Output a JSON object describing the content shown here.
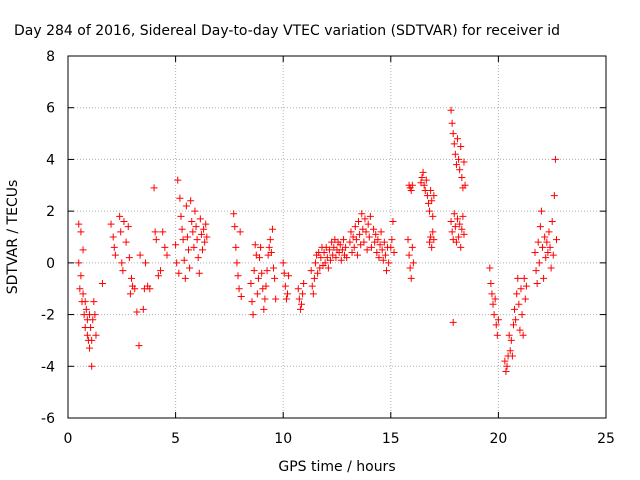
{
  "chart_data": {
    "type": "scatter",
    "title": "Day 284 of 2016, Sidereal Day-to-day VTEC variation (SDTVAR) for receiver id",
    "xlabel": "GPS time / hours",
    "ylabel": "SDTVAR / TECUs",
    "xlim": [
      0,
      25
    ],
    "ylim": [
      -6,
      8
    ],
    "xticks": [
      "0",
      "5",
      "10",
      "15",
      "20",
      "25"
    ],
    "yticks": [
      "-6",
      "-4",
      "-2",
      "0",
      "2",
      "4",
      "6",
      "8"
    ],
    "xtick_values": [
      0,
      5,
      10,
      15,
      20,
      25
    ],
    "ytick_values": [
      -6,
      -4,
      -2,
      0,
      2,
      4,
      6,
      8
    ],
    "grid": true,
    "marker": "plus",
    "colors": {
      "points": "#ff0000",
      "grid": "#b0b0b0",
      "axes": "#000000"
    },
    "series": [
      {
        "points": [
          [
            0.5,
            1.5
          ],
          [
            0.5,
            0.0
          ],
          [
            0.55,
            -1.0
          ],
          [
            0.6,
            1.2
          ],
          [
            0.6,
            -0.5
          ],
          [
            0.65,
            -1.5
          ],
          [
            0.7,
            -1.2
          ],
          [
            0.7,
            0.5
          ],
          [
            0.75,
            -2.0
          ],
          [
            0.8,
            -1.5
          ],
          [
            0.8,
            -2.5
          ],
          [
            0.85,
            -1.8
          ],
          [
            0.9,
            -2.8
          ],
          [
            0.9,
            -2.2
          ],
          [
            0.95,
            -3.0
          ],
          [
            1.0,
            -3.3
          ],
          [
            1.0,
            -2.0
          ],
          [
            1.05,
            -2.5
          ],
          [
            1.1,
            -4.0
          ],
          [
            1.1,
            -3.0
          ],
          [
            1.15,
            -2.2
          ],
          [
            1.2,
            -1.5
          ],
          [
            1.25,
            -2.0
          ],
          [
            1.3,
            -2.8
          ],
          [
            1.6,
            -0.8
          ],
          [
            2.0,
            1.5
          ],
          [
            2.1,
            1.0
          ],
          [
            2.15,
            0.6
          ],
          [
            2.2,
            0.3
          ],
          [
            2.4,
            1.8
          ],
          [
            2.45,
            1.2
          ],
          [
            2.5,
            0.0
          ],
          [
            2.55,
            -0.3
          ],
          [
            2.6,
            1.6
          ],
          [
            2.7,
            0.8
          ],
          [
            2.8,
            1.4
          ],
          [
            2.85,
            0.2
          ],
          [
            2.9,
            -1.2
          ],
          [
            2.95,
            -0.6
          ],
          [
            3.0,
            -0.9
          ],
          [
            3.1,
            -1.0
          ],
          [
            3.2,
            -1.9
          ],
          [
            3.3,
            -3.2
          ],
          [
            3.35,
            0.3
          ],
          [
            3.5,
            -1.8
          ],
          [
            3.55,
            -1.0
          ],
          [
            3.6,
            0.0
          ],
          [
            3.7,
            -0.9
          ],
          [
            3.8,
            -1.0
          ],
          [
            4.0,
            2.9
          ],
          [
            4.05,
            1.2
          ],
          [
            4.1,
            0.9
          ],
          [
            4.2,
            -0.5
          ],
          [
            4.3,
            -0.3
          ],
          [
            4.4,
            1.2
          ],
          [
            4.5,
            0.6
          ],
          [
            4.6,
            0.3
          ],
          [
            5.0,
            0.7
          ],
          [
            5.05,
            0.0
          ],
          [
            5.1,
            3.2
          ],
          [
            5.15,
            -0.4
          ],
          [
            5.2,
            2.5
          ],
          [
            5.25,
            1.8
          ],
          [
            5.3,
            1.3
          ],
          [
            5.35,
            0.9
          ],
          [
            5.4,
            0.1
          ],
          [
            5.45,
            -0.6
          ],
          [
            5.5,
            2.2
          ],
          [
            5.55,
            1.0
          ],
          [
            5.6,
            0.5
          ],
          [
            5.65,
            -0.2
          ],
          [
            5.7,
            2.4
          ],
          [
            5.75,
            1.6
          ],
          [
            5.8,
            1.2
          ],
          [
            5.85,
            0.6
          ],
          [
            5.9,
            2.0
          ],
          [
            5.95,
            1.4
          ],
          [
            6.0,
            0.9
          ],
          [
            6.05,
            0.2
          ],
          [
            6.1,
            -0.4
          ],
          [
            6.15,
            1.7
          ],
          [
            6.2,
            1.1
          ],
          [
            6.25,
            0.5
          ],
          [
            6.3,
            1.3
          ],
          [
            6.35,
            0.8
          ],
          [
            6.4,
            1.5
          ],
          [
            6.45,
            1.0
          ],
          [
            7.7,
            1.9
          ],
          [
            7.75,
            1.4
          ],
          [
            7.8,
            0.6
          ],
          [
            7.85,
            0.0
          ],
          [
            7.9,
            -0.5
          ],
          [
            7.95,
            -1.0
          ],
          [
            8.0,
            1.2
          ],
          [
            8.05,
            -1.3
          ],
          [
            8.5,
            -0.8
          ],
          [
            8.55,
            -1.5
          ],
          [
            8.6,
            -2.0
          ],
          [
            8.65,
            -0.3
          ],
          [
            8.7,
            0.7
          ],
          [
            8.75,
            0.3
          ],
          [
            8.8,
            -1.2
          ],
          [
            8.85,
            -0.6
          ],
          [
            8.9,
            0.2
          ],
          [
            8.95,
            0.6
          ],
          [
            9.0,
            -0.4
          ],
          [
            9.05,
            -1.0
          ],
          [
            9.1,
            -1.8
          ],
          [
            9.15,
            -1.4
          ],
          [
            9.2,
            -0.9
          ],
          [
            9.25,
            -0.3
          ],
          [
            9.3,
            0.3
          ],
          [
            9.35,
            0.6
          ],
          [
            9.4,
            0.9
          ],
          [
            9.45,
            0.4
          ],
          [
            9.5,
            1.3
          ],
          [
            9.55,
            -0.2
          ],
          [
            9.6,
            -0.6
          ],
          [
            9.65,
            -1.4
          ],
          [
            10.0,
            0.0
          ],
          [
            10.05,
            -0.4
          ],
          [
            10.1,
            -0.9
          ],
          [
            10.15,
            -1.4
          ],
          [
            10.2,
            -1.2
          ],
          [
            10.25,
            -0.5
          ],
          [
            10.7,
            -1.0
          ],
          [
            10.75,
            -1.4
          ],
          [
            10.8,
            -1.8
          ],
          [
            10.85,
            -1.6
          ],
          [
            10.9,
            -1.2
          ],
          [
            10.95,
            -0.8
          ],
          [
            11.3,
            -0.3
          ],
          [
            11.35,
            -0.9
          ],
          [
            11.4,
            -1.2
          ],
          [
            11.45,
            -0.6
          ],
          [
            11.5,
            0.0
          ],
          [
            11.55,
            0.3
          ],
          [
            11.6,
            -0.4
          ],
          [
            11.65,
            0.4
          ],
          [
            11.7,
            -0.2
          ],
          [
            11.75,
            0.2
          ],
          [
            11.8,
            0.6
          ],
          [
            11.85,
            -0.1
          ],
          [
            11.9,
            0.4
          ],
          [
            11.95,
            0.0
          ],
          [
            12.0,
            0.6
          ],
          [
            12.05,
            0.2
          ],
          [
            12.1,
            -0.2
          ],
          [
            12.15,
            0.5
          ],
          [
            12.2,
            0.1
          ],
          [
            12.25,
            0.8
          ],
          [
            12.3,
            0.3
          ],
          [
            12.35,
            0.6
          ],
          [
            12.4,
            0.9
          ],
          [
            12.45,
            0.2
          ],
          [
            12.5,
            0.5
          ],
          [
            12.55,
            0.8
          ],
          [
            12.6,
            0.4
          ],
          [
            12.65,
            0.7
          ],
          [
            12.7,
            0.1
          ],
          [
            12.75,
            0.5
          ],
          [
            12.8,
            0.9
          ],
          [
            12.85,
            0.3
          ],
          [
            12.9,
            0.6
          ],
          [
            12.95,
            0.2
          ],
          [
            13.1,
            0.8
          ],
          [
            13.15,
            1.2
          ],
          [
            13.2,
            0.4
          ],
          [
            13.25,
            1.0
          ],
          [
            13.3,
            0.6
          ],
          [
            13.35,
            1.4
          ],
          [
            13.4,
            0.9
          ],
          [
            13.45,
            0.3
          ],
          [
            13.5,
            1.6
          ],
          [
            13.55,
            1.1
          ],
          [
            13.6,
            0.7
          ],
          [
            13.65,
            1.9
          ],
          [
            13.7,
            1.3
          ],
          [
            13.75,
            0.8
          ],
          [
            13.8,
            1.7
          ],
          [
            13.85,
            1.2
          ],
          [
            13.9,
            0.5
          ],
          [
            13.95,
            1.5
          ],
          [
            14.0,
            1.0
          ],
          [
            14.05,
            1.8
          ],
          [
            14.1,
            0.6
          ],
          [
            14.2,
            1.3
          ],
          [
            14.25,
            0.8
          ],
          [
            14.3,
            1.1
          ],
          [
            14.35,
            0.4
          ],
          [
            14.4,
            0.9
          ],
          [
            14.45,
            0.2
          ],
          [
            14.5,
            0.7
          ],
          [
            14.55,
            1.2
          ],
          [
            14.6,
            0.5
          ],
          [
            14.65,
            0.1
          ],
          [
            14.7,
            0.8
          ],
          [
            14.75,
            0.3
          ],
          [
            14.8,
            -0.3
          ],
          [
            14.85,
            0.6
          ],
          [
            14.9,
            0.0
          ],
          [
            15.0,
            0.6
          ],
          [
            15.05,
            0.9
          ],
          [
            15.1,
            1.6
          ],
          [
            15.15,
            0.4
          ],
          [
            15.8,
            0.9
          ],
          [
            15.85,
            0.3
          ],
          [
            15.9,
            -0.2
          ],
          [
            15.95,
            -0.6
          ],
          [
            16.0,
            0.6
          ],
          [
            16.05,
            0.0
          ],
          [
            15.85,
            3.0
          ],
          [
            15.9,
            2.9
          ],
          [
            15.95,
            2.8
          ],
          [
            16.0,
            3.0
          ],
          [
            16.4,
            3.1
          ],
          [
            16.45,
            3.3
          ],
          [
            16.5,
            3.5
          ],
          [
            16.55,
            3.0
          ],
          [
            16.6,
            2.8
          ],
          [
            16.65,
            3.2
          ],
          [
            16.7,
            2.6
          ],
          [
            16.75,
            2.3
          ],
          [
            16.8,
            2.0
          ],
          [
            16.85,
            2.8
          ],
          [
            16.9,
            2.4
          ],
          [
            16.95,
            1.8
          ],
          [
            17.0,
            2.6
          ],
          [
            16.8,
            0.8
          ],
          [
            16.85,
            1.0
          ],
          [
            16.9,
            0.6
          ],
          [
            16.95,
            1.2
          ],
          [
            17.0,
            0.9
          ],
          [
            17.8,
            5.9
          ],
          [
            17.85,
            5.4
          ],
          [
            17.9,
            5.0
          ],
          [
            17.95,
            4.6
          ],
          [
            18.0,
            4.2
          ],
          [
            18.05,
            3.8
          ],
          [
            18.1,
            4.8
          ],
          [
            18.15,
            4.0
          ],
          [
            18.2,
            3.6
          ],
          [
            18.25,
            4.5
          ],
          [
            18.3,
            3.3
          ],
          [
            18.35,
            2.9
          ],
          [
            18.4,
            3.9
          ],
          [
            18.45,
            3.0
          ],
          [
            17.8,
            1.6
          ],
          [
            17.85,
            1.2
          ],
          [
            17.9,
            0.9
          ],
          [
            17.95,
            1.9
          ],
          [
            18.0,
            1.4
          ],
          [
            18.05,
            0.8
          ],
          [
            18.1,
            1.7
          ],
          [
            18.15,
            1.0
          ],
          [
            18.2,
            1.5
          ],
          [
            18.25,
            0.6
          ],
          [
            18.3,
            1.3
          ],
          [
            18.35,
            1.8
          ],
          [
            18.4,
            1.1
          ],
          [
            17.9,
            -2.3
          ],
          [
            19.6,
            -0.2
          ],
          [
            19.65,
            -0.8
          ],
          [
            19.7,
            -1.2
          ],
          [
            19.75,
            -1.6
          ],
          [
            19.8,
            -2.0
          ],
          [
            19.85,
            -1.4
          ],
          [
            19.9,
            -2.4
          ],
          [
            19.95,
            -2.8
          ],
          [
            20.0,
            -2.2
          ],
          [
            20.3,
            -3.8
          ],
          [
            20.35,
            -4.2
          ],
          [
            20.4,
            -4.0
          ],
          [
            20.45,
            -3.6
          ],
          [
            20.5,
            -2.8
          ],
          [
            20.55,
            -3.4
          ],
          [
            20.6,
            -3.0
          ],
          [
            20.65,
            -3.6
          ],
          [
            20.7,
            -2.4
          ],
          [
            20.75,
            -1.8
          ],
          [
            20.8,
            -2.2
          ],
          [
            20.85,
            -1.2
          ],
          [
            20.9,
            -0.6
          ],
          [
            20.95,
            -1.6
          ],
          [
            21.0,
            -2.6
          ],
          [
            21.05,
            -1.0
          ],
          [
            21.1,
            -2.0
          ],
          [
            21.15,
            -2.8
          ],
          [
            21.2,
            -0.6
          ],
          [
            21.25,
            -1.4
          ],
          [
            21.3,
            -0.9
          ],
          [
            21.7,
            0.4
          ],
          [
            21.75,
            -0.3
          ],
          [
            21.8,
            -0.8
          ],
          [
            21.85,
            0.8
          ],
          [
            21.9,
            0.0
          ],
          [
            21.95,
            1.4
          ],
          [
            22.0,
            2.0
          ],
          [
            22.05,
            0.6
          ],
          [
            22.1,
            -0.6
          ],
          [
            22.15,
            1.0
          ],
          [
            22.2,
            0.2
          ],
          [
            22.25,
            0.8
          ],
          [
            22.3,
            0.4
          ],
          [
            22.35,
            1.2
          ],
          [
            22.4,
            0.6
          ],
          [
            22.45,
            -0.2
          ],
          [
            22.5,
            1.6
          ],
          [
            22.55,
            0.3
          ],
          [
            22.6,
            2.6
          ],
          [
            22.65,
            4.0
          ],
          [
            22.7,
            0.9
          ]
        ]
      }
    ]
  }
}
